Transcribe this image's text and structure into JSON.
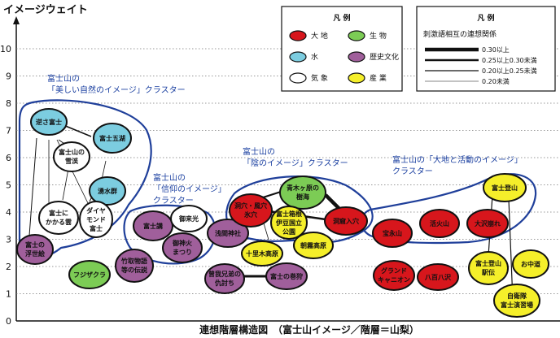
{
  "axis": {
    "ylabel": "イメージウェイト",
    "ticks": [
      "0",
      "1",
      "2",
      "3",
      "4",
      "5",
      "6",
      "7",
      "8",
      "9",
      "10"
    ],
    "caption": "連想階層構造図　（富士山イメージ／階層＝山梨）"
  },
  "clusters": [
    {
      "id": "beauty",
      "lines": [
        "富士山の",
        "「美しい自然のイメージ」クラスター"
      ]
    },
    {
      "id": "faith",
      "lines": [
        "富士山の",
        "「信仰のイメージ」",
        "クラスター"
      ]
    },
    {
      "id": "shadow",
      "lines": [
        "富士山の",
        "「陰のイメージ」クラスター"
      ]
    },
    {
      "id": "land",
      "lines": [
        "富士山の「大地と活動のイメージ」",
        "クラスター"
      ]
    }
  ],
  "legend1": {
    "title": "凡 例",
    "items": [
      {
        "label": "大 地",
        "color": "#d7161c"
      },
      {
        "label": "生 物",
        "color": "#7ccc55"
      },
      {
        "label": "水",
        "color": "#7ccde0"
      },
      {
        "label": "歴史文化",
        "color": "#a05f9b"
      },
      {
        "label": "気 象",
        "color": "#ffffff"
      },
      {
        "label": "産 業",
        "color": "#f5ef2a"
      }
    ]
  },
  "legend2": {
    "title": "凡 例",
    "subtitle": "刺激語相互の連想関係",
    "items": [
      {
        "label": "0.30以上",
        "stroke": 4.5
      },
      {
        "label": "0.25以上0.30未満",
        "stroke": 2.5
      },
      {
        "label": "0.20以上0.25未満",
        "stroke": 1.2
      },
      {
        "label": "0.20未満",
        "stroke": 0.6
      }
    ]
  },
  "nodes": [
    {
      "id": "sakasa",
      "lines": [
        "逆さ富士"
      ],
      "color": "#7ccde0"
    },
    {
      "id": "goko",
      "lines": [
        "富士五湖"
      ],
      "color": "#7ccde0"
    },
    {
      "id": "setsukei",
      "lines": [
        "富士山の",
        "雪渓"
      ],
      "color": "#ffffff"
    },
    {
      "id": "wakimizu",
      "lines": [
        "湧水群"
      ],
      "color": "#7ccde0"
    },
    {
      "id": "kasagumo",
      "lines": [
        "富士に",
        "かかる雲"
      ],
      "color": "#ffffff"
    },
    {
      "id": "diamond",
      "lines": [
        "ダイヤ",
        "モンド",
        "富士"
      ],
      "color": "#ffffff"
    },
    {
      "id": "ukiyoe",
      "lines": [
        "富士の",
        "浮世絵"
      ],
      "color": "#a05f9b"
    },
    {
      "id": "fujizakura",
      "lines": [
        "フジザクラ"
      ],
      "color": "#7ccc55"
    },
    {
      "id": "taketori",
      "lines": [
        "竹取物語",
        "等の伝説"
      ],
      "color": "#a05f9b"
    },
    {
      "id": "fujiko",
      "lines": [
        "富士講"
      ],
      "color": "#a05f9b"
    },
    {
      "id": "goraiko",
      "lines": [
        "御来光"
      ],
      "color": "#ffffff"
    },
    {
      "id": "gojinka",
      "lines": [
        "御神火",
        "まつり"
      ],
      "color": "#a05f9b"
    },
    {
      "id": "sengen",
      "lines": [
        "浅間神社"
      ],
      "color": "#a05f9b"
    },
    {
      "id": "jukai",
      "lines": [
        "青木ヶ原の",
        "樹海"
      ],
      "color": "#7ccc55"
    },
    {
      "id": "doketsu",
      "lines": [
        "洞穴・風穴",
        "氷穴"
      ],
      "color": "#d7161c"
    },
    {
      "id": "hakone",
      "lines": [
        "富士箱根",
        "伊豆国立",
        "公園"
      ],
      "color": "#f5ef2a"
    },
    {
      "id": "doukutsu",
      "lines": [
        "洞窟入穴"
      ],
      "color": "#d7161c"
    },
    {
      "id": "asagiri",
      "lines": [
        "朝霧高原"
      ],
      "color": "#f5ef2a"
    },
    {
      "id": "jikki",
      "lines": [
        "十里木高原"
      ],
      "color": "#f5ef2a"
    },
    {
      "id": "soga",
      "lines": [
        "曾我兄弟の",
        "仇討ち"
      ],
      "color": "#a05f9b"
    },
    {
      "id": "makigari",
      "lines": [
        "富士の巻狩"
      ],
      "color": "#a05f9b"
    },
    {
      "id": "tozan",
      "lines": [
        "富士登山"
      ],
      "color": "#f5ef2a"
    },
    {
      "id": "hoeizan",
      "lines": [
        "宝永山"
      ],
      "color": "#d7161c"
    },
    {
      "id": "kakazan",
      "lines": [
        "活火山"
      ],
      "color": "#d7161c"
    },
    {
      "id": "osawa",
      "lines": [
        "大沢崩れ"
      ],
      "color": "#d7161c"
    },
    {
      "id": "ekiden",
      "lines": [
        "富士登山",
        "駅伝"
      ],
      "color": "#f5ef2a"
    },
    {
      "id": "ochudo",
      "lines": [
        "お中道"
      ],
      "color": "#f5ef2a"
    },
    {
      "id": "enshujo",
      "lines": [
        "自衛隊",
        "富士演習場"
      ],
      "color": "#f5ef2a"
    },
    {
      "id": "grand",
      "lines": [
        "グランド",
        "キャニオン"
      ],
      "color": "#d7161c"
    },
    {
      "id": "happyaku",
      "lines": [
        "八百八沢"
      ],
      "color": "#d7161c"
    }
  ]
}
